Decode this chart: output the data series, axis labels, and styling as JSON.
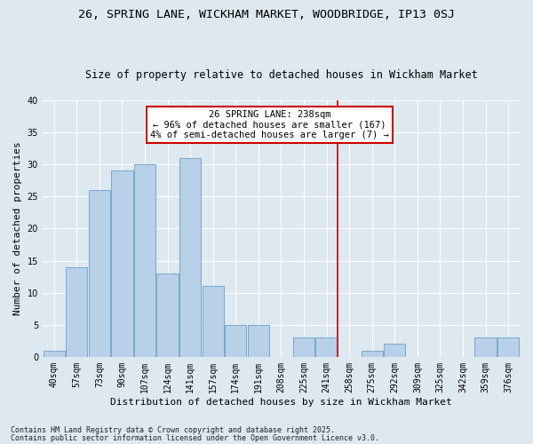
{
  "title": "26, SPRING LANE, WICKHAM MARKET, WOODBRIDGE, IP13 0SJ",
  "subtitle": "Size of property relative to detached houses in Wickham Market",
  "xlabel": "Distribution of detached houses by size in Wickham Market",
  "ylabel": "Number of detached properties",
  "categories": [
    "40sqm",
    "57sqm",
    "73sqm",
    "90sqm",
    "107sqm",
    "124sqm",
    "141sqm",
    "157sqm",
    "174sqm",
    "191sqm",
    "208sqm",
    "225sqm",
    "241sqm",
    "258sqm",
    "275sqm",
    "292sqm",
    "309sqm",
    "325sqm",
    "342sqm",
    "359sqm",
    "376sqm"
  ],
  "values": [
    1,
    14,
    26,
    29,
    30,
    13,
    31,
    11,
    5,
    5,
    0,
    3,
    3,
    0,
    1,
    2,
    0,
    0,
    0,
    3,
    3
  ],
  "bar_color": "#b8d0e8",
  "bar_edge_color": "#6aa0c8",
  "bg_color": "#dde8f0",
  "grid_color": "#ffffff",
  "vline_color": "#cc0000",
  "vline_x": 12.5,
  "annotation_text": "26 SPRING LANE: 238sqm\n← 96% of detached houses are smaller (167)\n4% of semi-detached houses are larger (7) →",
  "annotation_box_facecolor": "#ffffff",
  "annotation_box_edgecolor": "#cc0000",
  "ylim": [
    0,
    40
  ],
  "yticks": [
    0,
    5,
    10,
    15,
    20,
    25,
    30,
    35,
    40
  ],
  "footer1": "Contains HM Land Registry data © Crown copyright and database right 2025.",
  "footer2": "Contains public sector information licensed under the Open Government Licence v3.0.",
  "title_fontsize": 9.5,
  "subtitle_fontsize": 8.5,
  "xlabel_fontsize": 8,
  "ylabel_fontsize": 8,
  "tick_fontsize": 7,
  "footer_fontsize": 6,
  "annotation_fontsize": 7.5
}
